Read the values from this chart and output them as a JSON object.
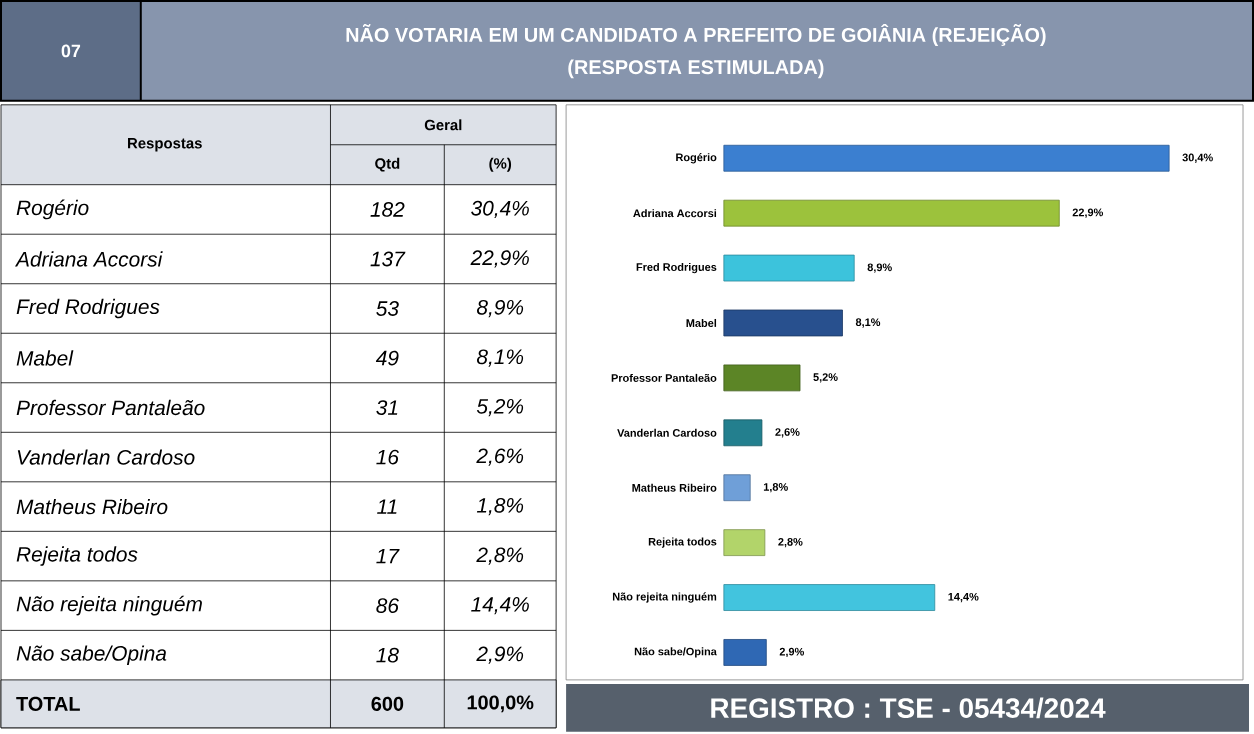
{
  "chart_data": {
    "type": "bar",
    "orientation": "horizontal",
    "title": "NÃO VOTARIA EM UM CANDIDATO A PREFEITO DE GOIÂNIA (REJEIÇÃO)",
    "subtitle": "(RESPOSTA ESTIMULADA)",
    "categories": [
      "Rogério",
      "Adriana Accorsi",
      "Fred Rodrigues",
      "Mabel",
      "Professor Pantaleão",
      "Vanderlan Cardoso",
      "Matheus Ribeiro",
      "Rejeita todos",
      "Não rejeita ninguém",
      "Não sabe/Opina"
    ],
    "values": [
      30.4,
      22.9,
      8.9,
      8.1,
      5.2,
      2.6,
      1.8,
      2.8,
      14.4,
      2.9
    ],
    "value_labels": [
      "30,4%",
      "22,9%",
      "8,9%",
      "8,1%",
      "5,2%",
      "2,6%",
      "1,8%",
      "2,8%",
      "14,4%",
      "2,9%"
    ],
    "colors": [
      "#3b7fd0",
      "#9cc23c",
      "#3cc3dc",
      "#28508e",
      "#5c8526",
      "#237f8e",
      "#6f9fd8",
      "#b2d46a",
      "#42c4de",
      "#2f68b4"
    ],
    "annotations": [
      "07",
      "Respostas",
      "Geral",
      "Qtd",
      "(%)",
      "TOTAL",
      "600",
      "100,0%",
      "REGISTRO : TSE - 05434/2024",
      "182",
      "137",
      "53",
      "49",
      "31",
      "16",
      "11",
      "17",
      "86",
      "18"
    ]
  }
}
